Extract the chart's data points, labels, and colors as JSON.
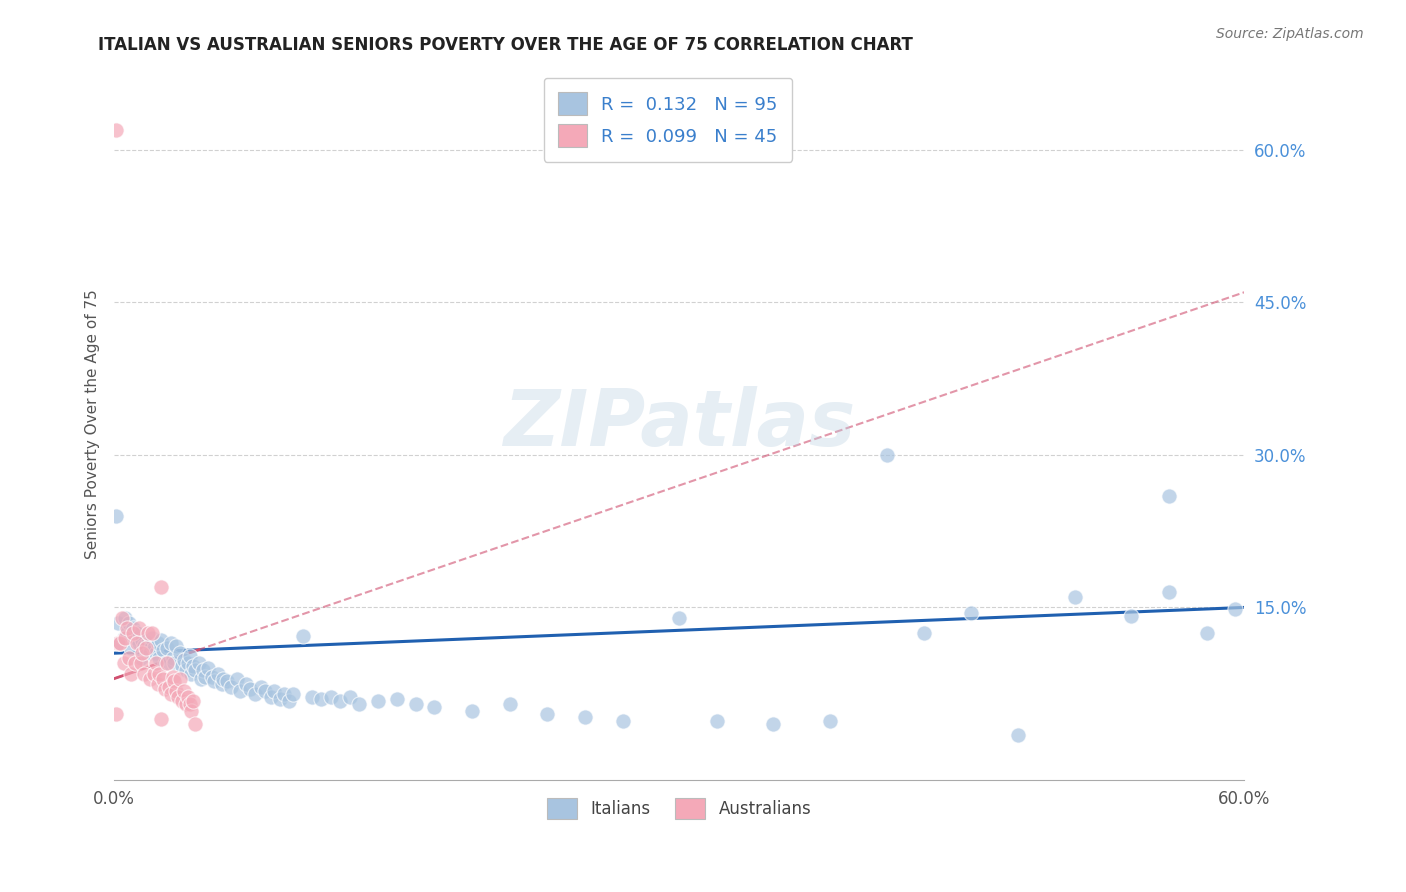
{
  "title": "ITALIAN VS AUSTRALIAN SENIORS POVERTY OVER THE AGE OF 75 CORRELATION CHART",
  "source": "Source: ZipAtlas.com",
  "ylabel": "Seniors Poverty Over the Age of 75",
  "xlim": [
    0.0,
    0.6
  ],
  "ylim": [
    -0.02,
    0.68
  ],
  "x_tick_labels": [
    "0.0%",
    "",
    "",
    "",
    "",
    "",
    "60.0%"
  ],
  "x_tick_positions": [
    0.0,
    0.1,
    0.2,
    0.3,
    0.4,
    0.5,
    0.6
  ],
  "y_tick_labels_right": [
    "60.0%",
    "45.0%",
    "30.0%",
    "15.0%"
  ],
  "y_tick_positions_right": [
    0.6,
    0.45,
    0.3,
    0.15
  ],
  "italian_R": "0.132",
  "italian_N": "95",
  "australian_R": "0.099",
  "australian_N": "45",
  "italian_color": "#a8c4e0",
  "australian_color": "#f4a9b8",
  "trend_italian_color": "#2060b0",
  "trend_australian_color": "#d05070",
  "background_color": "#ffffff",
  "grid_color": "#cccccc",
  "watermark": "ZIPatlas",
  "italian_x": [
    0.002,
    0.003,
    0.005,
    0.006,
    0.007,
    0.008,
    0.009,
    0.01,
    0.011,
    0.012,
    0.013,
    0.014,
    0.015,
    0.016,
    0.017,
    0.018,
    0.019,
    0.02,
    0.021,
    0.022,
    0.023,
    0.024,
    0.025,
    0.026,
    0.027,
    0.028,
    0.03,
    0.031,
    0.032,
    0.033,
    0.035,
    0.036,
    0.037,
    0.038,
    0.039,
    0.04,
    0.041,
    0.042,
    0.043,
    0.045,
    0.046,
    0.047,
    0.048,
    0.05,
    0.052,
    0.053,
    0.055,
    0.057,
    0.058,
    0.06,
    0.062,
    0.065,
    0.067,
    0.07,
    0.072,
    0.075,
    0.078,
    0.08,
    0.083,
    0.085,
    0.088,
    0.09,
    0.093,
    0.095,
    0.1,
    0.105,
    0.11,
    0.115,
    0.12,
    0.125,
    0.13,
    0.14,
    0.15,
    0.16,
    0.17,
    0.19,
    0.21,
    0.23,
    0.25,
    0.27,
    0.3,
    0.32,
    0.35,
    0.38,
    0.41,
    0.43,
    0.455,
    0.48,
    0.51,
    0.54,
    0.56,
    0.58,
    0.595,
    0.001,
    0.56
  ],
  "italian_y": [
    0.135,
    0.115,
    0.12,
    0.14,
    0.125,
    0.135,
    0.11,
    0.13,
    0.12,
    0.125,
    0.115,
    0.1,
    0.118,
    0.112,
    0.108,
    0.115,
    0.105,
    0.12,
    0.11,
    0.105,
    0.115,
    0.1,
    0.118,
    0.108,
    0.095,
    0.11,
    0.115,
    0.1,
    0.095,
    0.112,
    0.105,
    0.092,
    0.098,
    0.088,
    0.095,
    0.102,
    0.085,
    0.092,
    0.088,
    0.095,
    0.08,
    0.088,
    0.082,
    0.09,
    0.082,
    0.078,
    0.085,
    0.075,
    0.08,
    0.078,
    0.072,
    0.08,
    0.068,
    0.075,
    0.07,
    0.065,
    0.072,
    0.068,
    0.062,
    0.068,
    0.06,
    0.065,
    0.058,
    0.065,
    0.122,
    0.062,
    0.06,
    0.062,
    0.058,
    0.062,
    0.055,
    0.058,
    0.06,
    0.055,
    0.052,
    0.048,
    0.055,
    0.045,
    0.042,
    0.038,
    0.14,
    0.038,
    0.035,
    0.038,
    0.3,
    0.125,
    0.145,
    0.025,
    0.16,
    0.142,
    0.26,
    0.125,
    0.148,
    0.24,
    0.165
  ],
  "australian_x": [
    0.001,
    0.002,
    0.003,
    0.004,
    0.005,
    0.006,
    0.007,
    0.008,
    0.009,
    0.01,
    0.011,
    0.012,
    0.013,
    0.014,
    0.015,
    0.016,
    0.017,
    0.018,
    0.019,
    0.02,
    0.021,
    0.022,
    0.023,
    0.024,
    0.025,
    0.026,
    0.027,
    0.028,
    0.029,
    0.03,
    0.031,
    0.032,
    0.033,
    0.034,
    0.035,
    0.036,
    0.037,
    0.038,
    0.039,
    0.04,
    0.041,
    0.042,
    0.043,
    0.001,
    0.025
  ],
  "australian_y": [
    0.62,
    0.115,
    0.115,
    0.14,
    0.095,
    0.12,
    0.13,
    0.1,
    0.085,
    0.125,
    0.095,
    0.115,
    0.13,
    0.095,
    0.105,
    0.085,
    0.11,
    0.125,
    0.08,
    0.125,
    0.085,
    0.095,
    0.075,
    0.085,
    0.17,
    0.08,
    0.07,
    0.095,
    0.072,
    0.065,
    0.082,
    0.078,
    0.068,
    0.062,
    0.08,
    0.058,
    0.068,
    0.055,
    0.062,
    0.055,
    0.048,
    0.058,
    0.035,
    0.045,
    0.04
  ],
  "trend_italian_x0": 0.0,
  "trend_italian_y0": 0.105,
  "trend_italian_x1": 0.6,
  "trend_italian_y1": 0.15,
  "trend_australian_x0": 0.0,
  "trend_australian_y0": 0.08,
  "trend_australian_x1": 0.6,
  "trend_australian_y1": 0.46
}
